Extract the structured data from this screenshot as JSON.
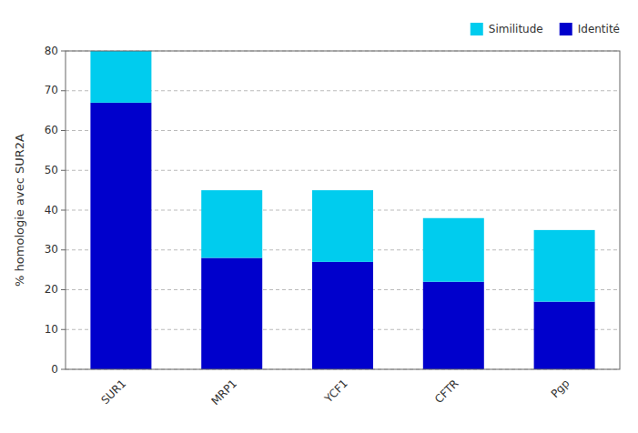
{
  "chart_data": {
    "type": "bar",
    "stacked": true,
    "categories": [
      "SUR1",
      "MRP1",
      "YCF1",
      "CFTR",
      "Pgp"
    ],
    "series": [
      {
        "name": "Identité",
        "color": "#0000CC",
        "values": [
          67,
          28,
          27,
          22,
          17
        ]
      },
      {
        "name": "Similitude",
        "color": "#00CCEE",
        "values": [
          13,
          17,
          18,
          16,
          18
        ]
      }
    ],
    "ylabel": "% homologie avec SUR2A",
    "ylim": [
      0,
      80
    ],
    "yticks": [
      0,
      10,
      20,
      30,
      40,
      50,
      60,
      70,
      80
    ],
    "grid": true,
    "legend": "upper right"
  }
}
